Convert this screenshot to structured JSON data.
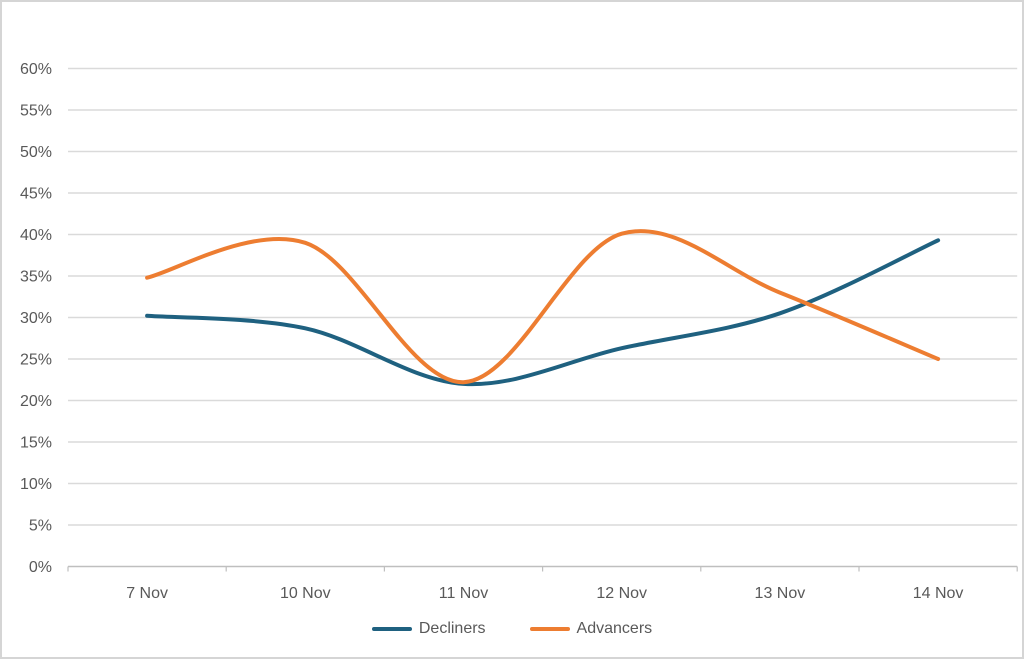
{
  "chart": {
    "background_color": "#ffffff",
    "border_color": "#d5d5d5",
    "gridline_color": "#dadada",
    "axis_line_color": "#bfbfbf",
    "text_color": "#595959"
  },
  "chart_data": {
    "type": "line",
    "smooth": true,
    "title": "",
    "xlabel": "",
    "ylabel": "",
    "grid": "horizontal",
    "legend_position": "bottom",
    "categories": [
      "7 Nov",
      "10 Nov",
      "11 Nov",
      "12 Nov",
      "13 Nov",
      "14 Nov"
    ],
    "series": [
      {
        "name": "Decliners",
        "color": "#1f6180",
        "values": [
          30.2,
          28.7,
          22.0,
          26.3,
          30.5,
          39.3
        ]
      },
      {
        "name": "Advancers",
        "color": "#ed7d31",
        "values": [
          34.8,
          39.0,
          22.2,
          40.1,
          33.0,
          25.0
        ]
      }
    ],
    "ylim": [
      0,
      60
    ],
    "y_tick_step": 5,
    "y_tick_suffix": "%",
    "y_tick_labels": [
      "0%",
      "5%",
      "10%",
      "15%",
      "20%",
      "25%",
      "30%",
      "35%",
      "40%",
      "45%",
      "50%",
      "55%",
      "60%"
    ]
  },
  "legend": {
    "items": [
      {
        "label": "Decliners"
      },
      {
        "label": "Advancers"
      }
    ]
  }
}
